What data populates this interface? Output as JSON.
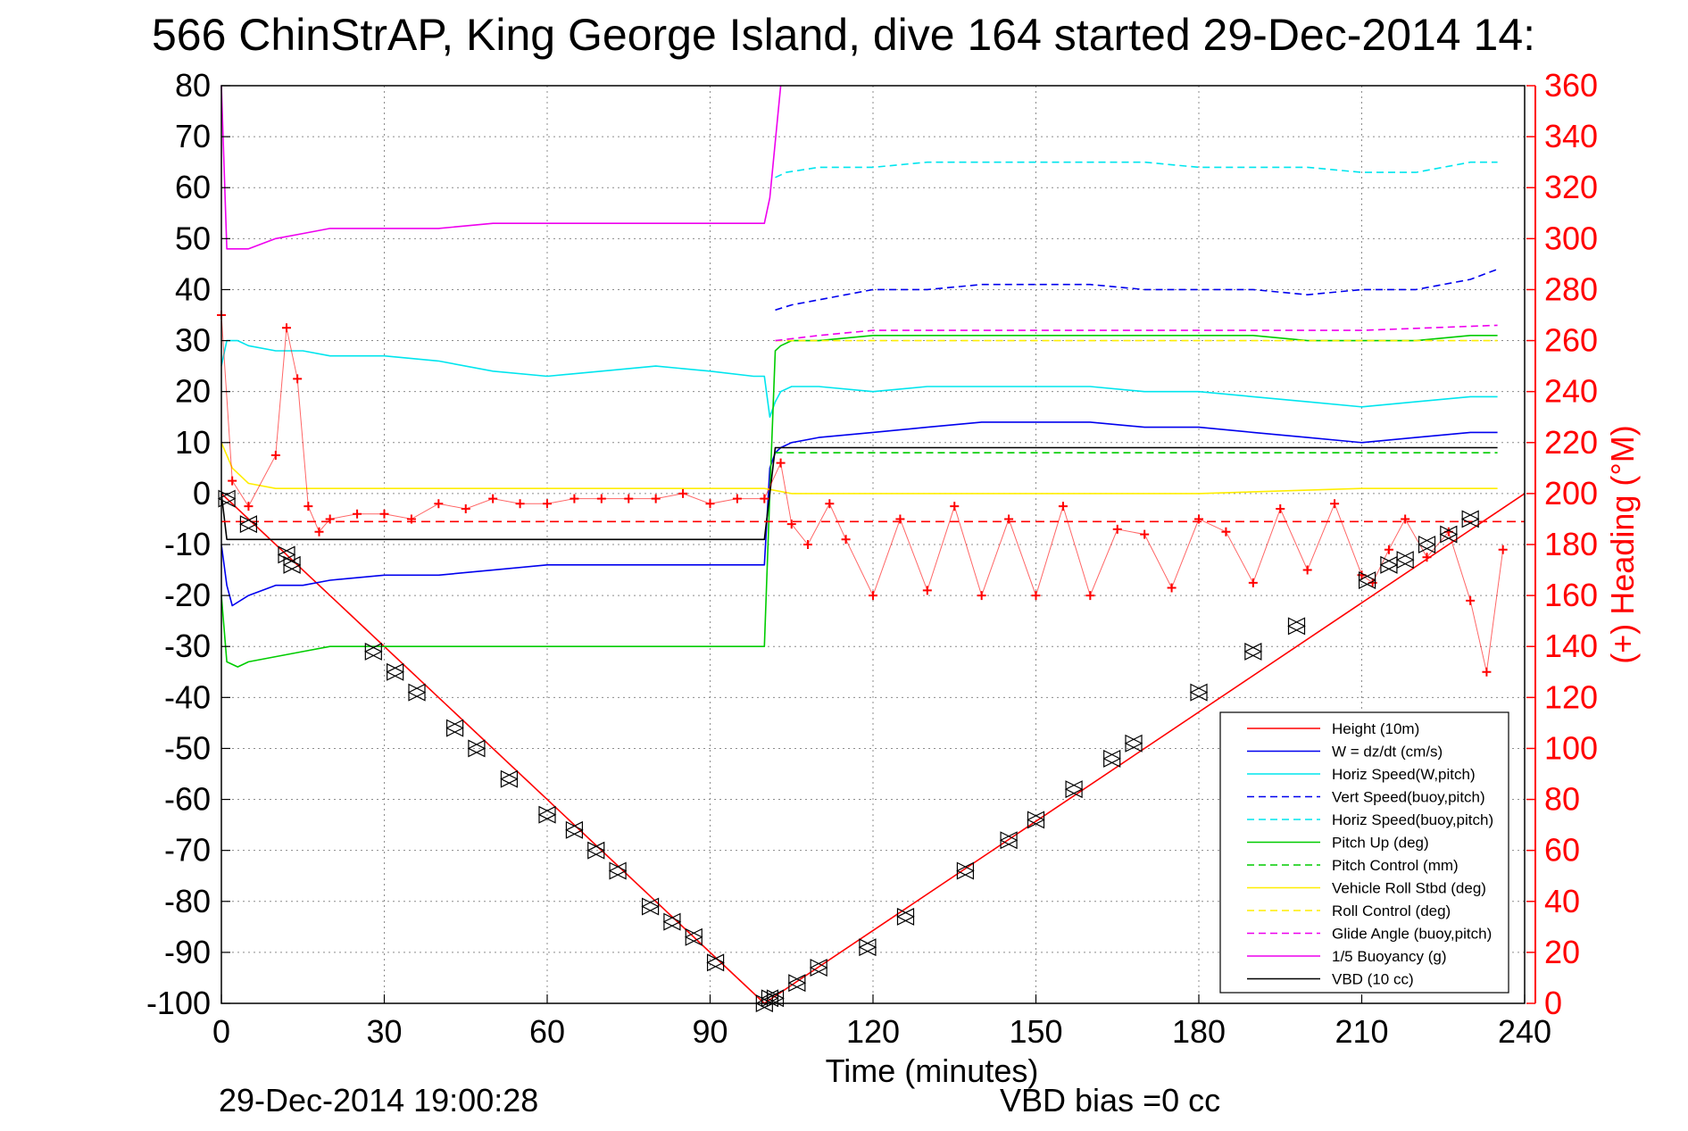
{
  "chart_data": {
    "type": "line",
    "title": "566 ChinStrAP, King George Island, dive 164 started 29-Dec-2014 14:",
    "xlabel": "Time (minutes)",
    "ylabel_left": "",
    "ylabel_right": "(+) Heading (°M)",
    "xlim": [
      0,
      240
    ],
    "ylim_left": [
      -100,
      80
    ],
    "ylim_right": [
      0,
      360
    ],
    "x_ticks": [
      0,
      30,
      60,
      90,
      120,
      150,
      180,
      210,
      240
    ],
    "y_ticks_left": [
      80,
      70,
      60,
      50,
      40,
      30,
      20,
      10,
      0,
      -10,
      -20,
      -30,
      -40,
      -50,
      -60,
      -70,
      -80,
      -90,
      -100
    ],
    "y_ticks_right": [
      360,
      340,
      320,
      300,
      280,
      260,
      240,
      220,
      200,
      180,
      160,
      140,
      120,
      100,
      80,
      60,
      40,
      20,
      0
    ],
    "grid": true,
    "legend_position": "bottom-right",
    "footer_left": "29-Dec-2014 19:00:28",
    "footer_right": "VBD bias =0 cc",
    "colors": {
      "red": "#ff0000",
      "blue": "#0000ee",
      "cyan": "#00e5ee",
      "green": "#00cc00",
      "yellow": "#ffee00",
      "magenta": "#ee00ee",
      "black": "#000000"
    },
    "series": [
      {
        "name": "Height (10m)",
        "color": "#ff0000",
        "style": "solid",
        "x": [
          0,
          100,
          240
        ],
        "y": [
          0,
          -100,
          0
        ]
      },
      {
        "name": "W = dz/dt (cm/s)",
        "color": "#0000ee",
        "style": "solid",
        "x": [
          0,
          1,
          2,
          5,
          10,
          15,
          20,
          30,
          40,
          50,
          60,
          70,
          80,
          90,
          98,
          100,
          101,
          102,
          103,
          105,
          110,
          120,
          130,
          140,
          150,
          160,
          170,
          180,
          190,
          200,
          210,
          220,
          230,
          235
        ],
        "y": [
          -10,
          -18,
          -22,
          -20,
          -18,
          -18,
          -17,
          -16,
          -16,
          -15,
          -14,
          -14,
          -14,
          -14,
          -14,
          -14,
          5,
          8,
          9,
          10,
          11,
          12,
          13,
          14,
          14,
          14,
          13,
          13,
          12,
          11,
          10,
          11,
          12,
          12
        ]
      },
      {
        "name": "Horiz Speed(W,pitch)",
        "color": "#00e5ee",
        "style": "solid",
        "x": [
          0,
          1,
          3,
          5,
          10,
          15,
          20,
          30,
          40,
          50,
          60,
          70,
          80,
          90,
          98,
          100,
          101,
          102,
          103,
          105,
          110,
          120,
          130,
          140,
          150,
          160,
          170,
          180,
          190,
          200,
          210,
          220,
          230,
          235
        ],
        "y": [
          25,
          30,
          30,
          29,
          28,
          28,
          27,
          27,
          26,
          24,
          23,
          24,
          25,
          24,
          23,
          23,
          15,
          18,
          20,
          21,
          21,
          20,
          21,
          21,
          21,
          21,
          20,
          20,
          19,
          18,
          17,
          18,
          19,
          19
        ]
      },
      {
        "name": "Vert Speed(buoy,pitch)",
        "color": "#0000ee",
        "style": "dashed",
        "x": [
          102,
          105,
          110,
          120,
          130,
          140,
          150,
          160,
          170,
          180,
          190,
          200,
          210,
          220,
          230,
          235
        ],
        "y": [
          36,
          37,
          38,
          40,
          40,
          41,
          41,
          41,
          40,
          40,
          40,
          39,
          40,
          40,
          42,
          44
        ]
      },
      {
        "name": "Horiz Speed(buoy,pitch)",
        "color": "#00e5ee",
        "style": "dashed",
        "x": [
          102,
          104,
          110,
          120,
          130,
          140,
          150,
          160,
          170,
          180,
          190,
          200,
          210,
          220,
          230,
          235
        ],
        "y": [
          62,
          63,
          64,
          64,
          65,
          65,
          65,
          65,
          65,
          64,
          64,
          64,
          63,
          63,
          65,
          65
        ]
      },
      {
        "name": "Pitch Up (deg)",
        "color": "#00cc00",
        "style": "solid",
        "x": [
          0,
          1,
          3,
          5,
          10,
          15,
          20,
          30,
          40,
          50,
          60,
          70,
          80,
          90,
          100,
          101,
          102,
          103,
          105,
          110,
          120,
          130,
          140,
          150,
          160,
          170,
          180,
          190,
          200,
          210,
          220,
          230,
          235
        ],
        "y": [
          -20,
          -33,
          -34,
          -33,
          -32,
          -31,
          -30,
          -30,
          -30,
          -30,
          -30,
          -30,
          -30,
          -30,
          -30,
          0,
          28,
          29,
          30,
          30,
          31,
          31,
          31,
          31,
          31,
          31,
          31,
          31,
          30,
          30,
          30,
          31,
          31
        ]
      },
      {
        "name": "Pitch Control (mm)",
        "color": "#00cc00",
        "style": "dashed",
        "x": [
          102,
          110,
          120,
          150,
          180,
          210,
          235
        ],
        "y": [
          8,
          8,
          8,
          8,
          8,
          8,
          8
        ]
      },
      {
        "name": "Vehicle Roll Stbd (deg)",
        "color": "#ffee00",
        "style": "solid",
        "x": [
          0,
          2,
          5,
          10,
          15,
          20,
          30,
          40,
          50,
          60,
          70,
          80,
          90,
          100,
          105,
          110,
          120,
          150,
          180,
          210,
          235
        ],
        "y": [
          10,
          5,
          2,
          1,
          1,
          1,
          1,
          1,
          1,
          1,
          1,
          1,
          1,
          1,
          0,
          0,
          0,
          0,
          0,
          1,
          1
        ]
      },
      {
        "name": "Roll Control (deg)",
        "color": "#ffee00",
        "style": "dashed",
        "x": [
          102,
          110,
          120,
          150,
          180,
          210,
          235
        ],
        "y": [
          30,
          30,
          30,
          30,
          30,
          30,
          30
        ]
      },
      {
        "name": "Glide Angle (buoy,pitch)",
        "color": "#ee00ee",
        "style": "dashed",
        "x": [
          102,
          110,
          120,
          150,
          180,
          210,
          235
        ],
        "y": [
          30,
          31,
          32,
          32,
          32,
          32,
          33
        ]
      },
      {
        "name": "1/5 Buoyancy (g)",
        "color": "#ee00ee",
        "style": "solid",
        "x": [
          0,
          1,
          2,
          5,
          10,
          15,
          20,
          30,
          40,
          50,
          60,
          70,
          80,
          90,
          100,
          101,
          103
        ],
        "y": [
          80,
          48,
          48,
          48,
          50,
          51,
          52,
          52,
          52,
          53,
          53,
          53,
          53,
          53,
          53,
          58,
          80
        ]
      },
      {
        "name": "VBD (10 cc)",
        "color": "#000000",
        "style": "solid",
        "x": [
          0,
          1,
          2,
          100,
          101,
          102,
          235
        ],
        "y": [
          0,
          -9,
          -9,
          -9,
          0,
          9,
          9
        ]
      }
    ],
    "heading": {
      "name": "(+) Heading (°M)",
      "color": "#ff0000",
      "axis": "right",
      "x": [
        0,
        2,
        5,
        10,
        12,
        14,
        16,
        18,
        20,
        25,
        30,
        35,
        40,
        45,
        50,
        55,
        60,
        65,
        70,
        75,
        80,
        85,
        90,
        95,
        100,
        103,
        105,
        108,
        112,
        115,
        120,
        125,
        130,
        135,
        140,
        145,
        150,
        155,
        160,
        165,
        170,
        175,
        180,
        185,
        190,
        195,
        200,
        205,
        210,
        212,
        215,
        218,
        222,
        226,
        230,
        233,
        236
      ],
      "y": [
        270,
        205,
        195,
        215,
        265,
        245,
        195,
        185,
        190,
        192,
        192,
        190,
        196,
        194,
        198,
        196,
        196,
        198,
        198,
        198,
        198,
        200,
        196,
        198,
        198,
        212,
        188,
        180,
        196,
        182,
        160,
        190,
        162,
        195,
        160,
        190,
        160,
        195,
        160,
        186,
        184,
        163,
        190,
        185,
        165,
        194,
        170,
        196,
        168,
        165,
        178,
        190,
        175,
        185,
        158,
        130,
        178
      ]
    },
    "heading_ref": {
      "name": "",
      "color": "#ff0000",
      "style": "dashed",
      "value": 189
    },
    "markers": {
      "name": "",
      "symbol": "triangle",
      "color": "#000000",
      "x": [
        1,
        5,
        12,
        13,
        28,
        32,
        36,
        43,
        47,
        53,
        60,
        65,
        69,
        73,
        79,
        83,
        87,
        91,
        100,
        101,
        102,
        106,
        110,
        119,
        126,
        137,
        145,
        150,
        157,
        164,
        168,
        180,
        190,
        198,
        211,
        215,
        218,
        222,
        226,
        230
      ],
      "y": [
        -1,
        -6,
        -12,
        -14,
        -31,
        -35,
        -39,
        -46,
        -50,
        -56,
        -63,
        -66,
        -70,
        -74,
        -81,
        -84,
        -87,
        -92,
        -100,
        -99,
        -99,
        -96,
        -93,
        -89,
        -83,
        -74,
        -68,
        -64,
        -58,
        -52,
        -49,
        -39,
        -31,
        -26,
        -17,
        -14,
        -13,
        -10,
        -8,
        -5
      ]
    },
    "legend": [
      {
        "label": "Height (10m)",
        "color": "#ff0000",
        "style": "solid"
      },
      {
        "label": "W = dz/dt (cm/s)",
        "color": "#0000ee",
        "style": "solid"
      },
      {
        "label": "Horiz Speed(W,pitch)",
        "color": "#00e5ee",
        "style": "solid"
      },
      {
        "label": "Vert Speed(buoy,pitch)",
        "color": "#0000ee",
        "style": "dashed"
      },
      {
        "label": "Horiz Speed(buoy,pitch)",
        "color": "#00e5ee",
        "style": "dashed"
      },
      {
        "label": "Pitch Up (deg)",
        "color": "#00cc00",
        "style": "solid"
      },
      {
        "label": "Pitch Control (mm)",
        "color": "#00cc00",
        "style": "dashed"
      },
      {
        "label": "Vehicle Roll Stbd (deg)",
        "color": "#ffee00",
        "style": "solid"
      },
      {
        "label": "Roll Control (deg)",
        "color": "#ffee00",
        "style": "dashed"
      },
      {
        "label": "Glide Angle (buoy,pitch)",
        "color": "#ee00ee",
        "style": "dashed"
      },
      {
        "label": "1/5 Buoyancy (g)",
        "color": "#ee00ee",
        "style": "solid"
      },
      {
        "label": "VBD (10 cc)",
        "color": "#000000",
        "style": "solid"
      }
    ]
  }
}
